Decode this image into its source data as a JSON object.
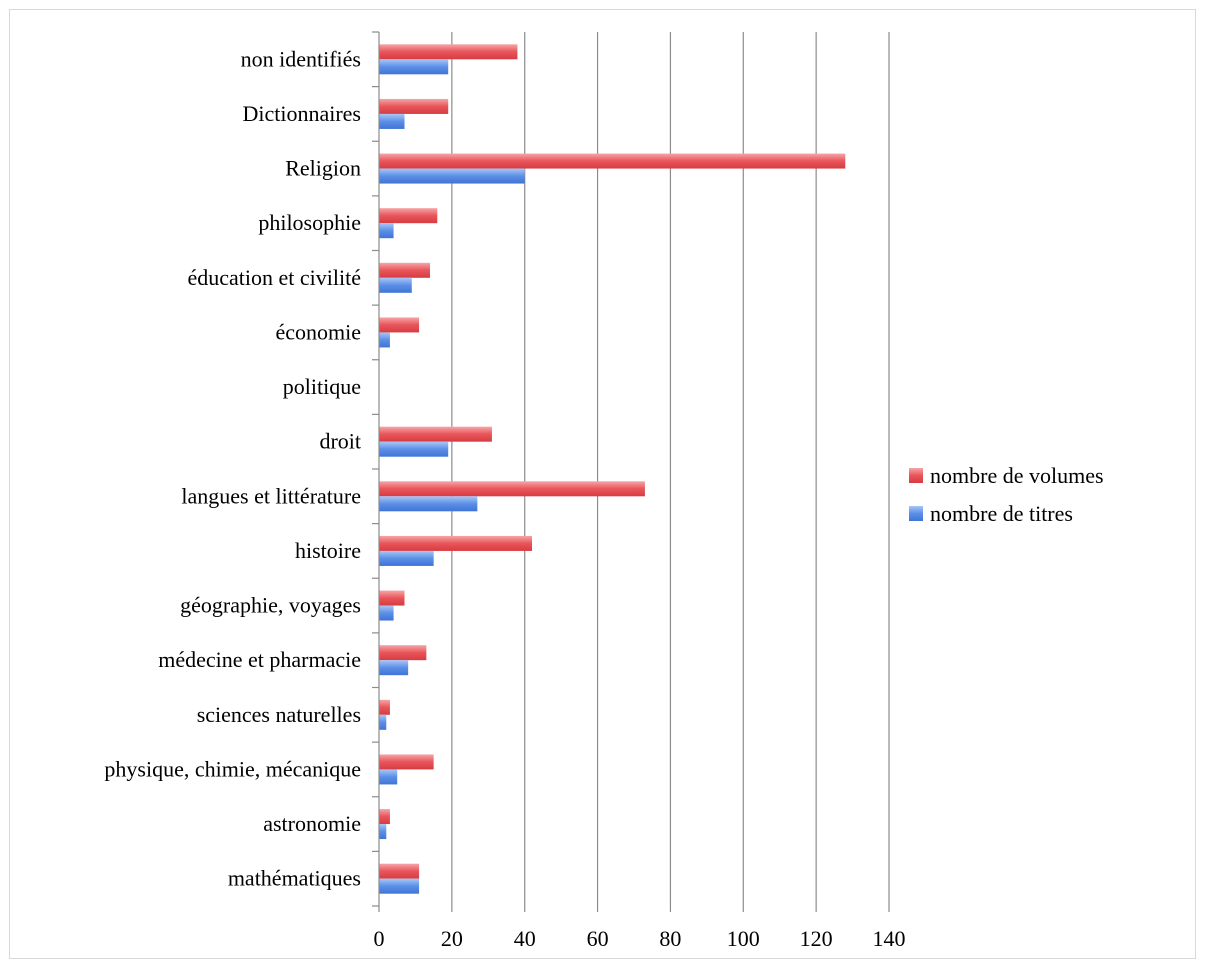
{
  "chart_data": {
    "type": "bar",
    "orientation": "horizontal",
    "categories": [
      "mathématiques",
      "astronomie",
      "physique, chimie, mécanique",
      "sciences naturelles",
      "médecine et pharmacie",
      "géographie, voyages",
      "histoire",
      "langues et littérature",
      "droit",
      "politique",
      "économie",
      "éducation et civilité",
      "philosophie",
      "Religion",
      "Dictionnaires",
      "non identifiés"
    ],
    "series": [
      {
        "name": "nombre de volumes",
        "color": "#e8555a",
        "values": [
          11,
          3,
          15,
          3,
          13,
          7,
          42,
          73,
          31,
          0,
          11,
          14,
          16,
          128,
          19,
          38
        ]
      },
      {
        "name": "nombre de titres",
        "color": "#5b8fe6",
        "values": [
          11,
          2,
          5,
          2,
          8,
          4,
          15,
          27,
          19,
          0,
          3,
          9,
          4,
          40,
          7,
          19
        ]
      }
    ],
    "xlim": [
      0,
      140
    ],
    "xticks": [
      "0",
      "20",
      "40",
      "60",
      "80",
      "100",
      "120",
      "140"
    ],
    "xlabel": "",
    "ylabel": "",
    "title": "",
    "grid": "vertical major gridlines",
    "legend_position": "right"
  }
}
